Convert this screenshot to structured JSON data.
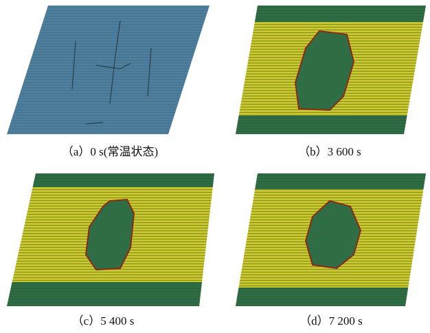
{
  "panels": [
    {
      "caption": "（a）0 s(常温状态)"
    },
    {
      "caption": "（b）3 600 s"
    },
    {
      "caption": "（c）5 400 s"
    },
    {
      "caption": "（d）7 200 s"
    }
  ]
}
